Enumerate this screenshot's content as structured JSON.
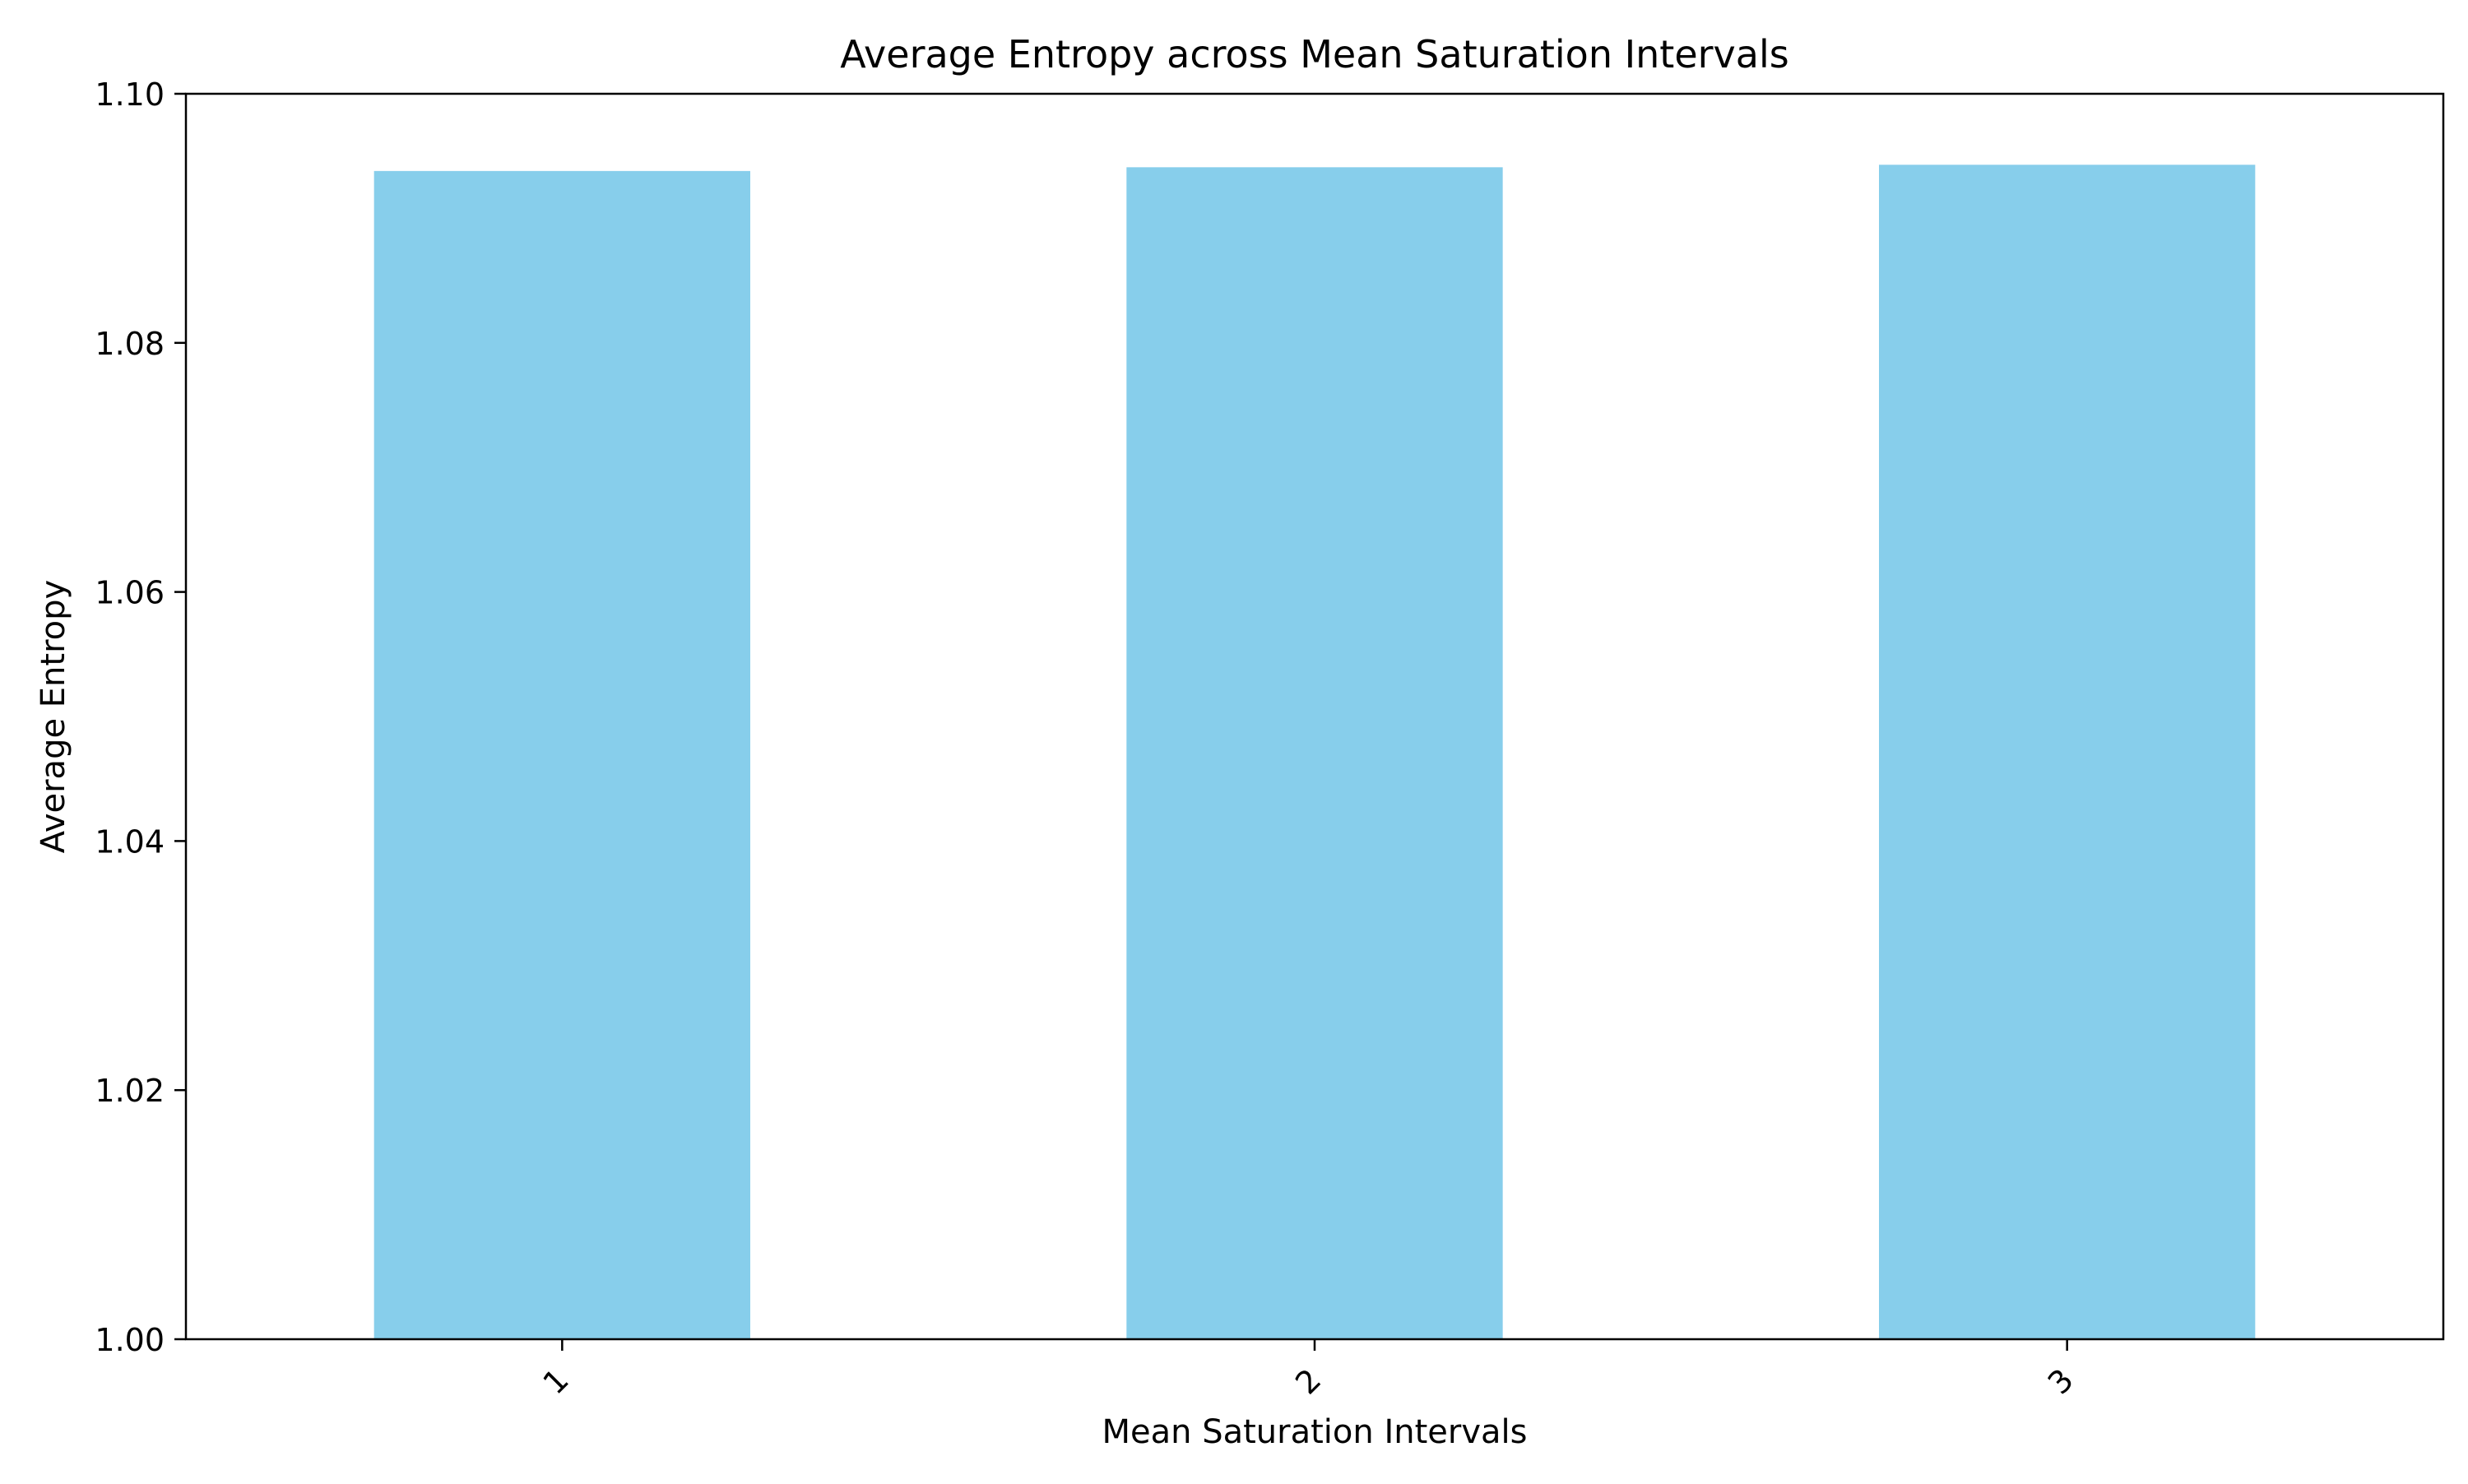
{
  "chart_data": {
    "type": "bar",
    "title": "Average Entropy across Mean Saturation Intervals",
    "xlabel": "Mean Saturation Intervals",
    "ylabel": "Average Entropy",
    "categories": [
      "1",
      "2",
      "3"
    ],
    "values": [
      1.0938,
      1.0941,
      1.0943
    ],
    "ylim": [
      1.0,
      1.1
    ],
    "yticks": [
      "1.00",
      "1.02",
      "1.04",
      "1.06",
      "1.08",
      "1.10"
    ],
    "xtick_rotation": -45,
    "bar_color": "#87CEEB",
    "grid": false,
    "legend": "none"
  }
}
